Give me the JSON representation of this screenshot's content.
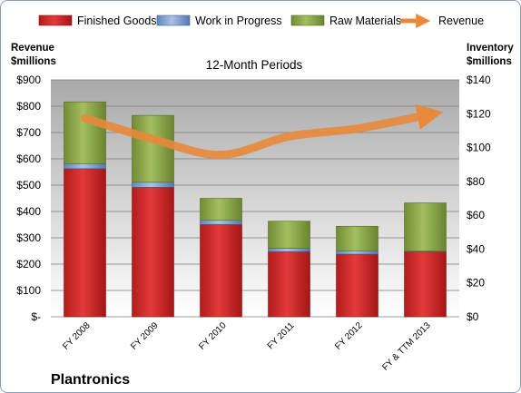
{
  "chart_data": {
    "type": "bar",
    "company": "Plantronics",
    "subtitle": "12-Month Periods",
    "left_axis_label": [
      "Revenue",
      "$millions"
    ],
    "right_axis_label": [
      "Inventory",
      "$millions"
    ],
    "categories": [
      "FY 2008",
      "FY 2009",
      "FY 2010",
      "FY 2011",
      "FY 2012",
      "FY & TTM 2013"
    ],
    "left_ylim": [
      0,
      900
    ],
    "left_ticks": [
      {
        "value": 0,
        "label": "$-"
      },
      {
        "value": 100,
        "label": "$100"
      },
      {
        "value": 200,
        "label": "$200"
      },
      {
        "value": 300,
        "label": "$300"
      },
      {
        "value": 400,
        "label": "$400"
      },
      {
        "value": 500,
        "label": "$500"
      },
      {
        "value": 600,
        "label": "$600"
      },
      {
        "value": 700,
        "label": "$700"
      },
      {
        "value": 800,
        "label": "$800"
      },
      {
        "value": 900,
        "label": "$900"
      }
    ],
    "right_ylim": [
      0,
      140
    ],
    "right_ticks": [
      {
        "value": 0,
        "label": "$0"
      },
      {
        "value": 20,
        "label": "$20"
      },
      {
        "value": 40,
        "label": "$40"
      },
      {
        "value": 60,
        "label": "$60"
      },
      {
        "value": 80,
        "label": "$80"
      },
      {
        "value": 100,
        "label": "$100"
      },
      {
        "value": 120,
        "label": "$120"
      },
      {
        "value": 140,
        "label": "$140"
      }
    ],
    "stacked_series": [
      {
        "name": "Finished Goods",
        "axis": "right",
        "color": "#d42a2a",
        "values": [
          87.5,
          76.5,
          54.5,
          38.5,
          37,
          38.5
        ]
      },
      {
        "name": "Work in Progress",
        "axis": "right",
        "color": "#7fa3d3",
        "values": [
          3,
          3,
          2.5,
          2,
          2,
          0.3
        ]
      },
      {
        "name": "Raw Materials",
        "axis": "right",
        "color": "#8fad4c",
        "values": [
          36.5,
          39.5,
          13,
          16,
          14.5,
          28.5
        ]
      }
    ],
    "line_series": {
      "name": "Revenue",
      "axis": "left",
      "color": "#e8883a",
      "values": [
        755,
        675,
        615,
        685,
        715,
        765
      ]
    },
    "grid": true,
    "legend_position": "top"
  }
}
